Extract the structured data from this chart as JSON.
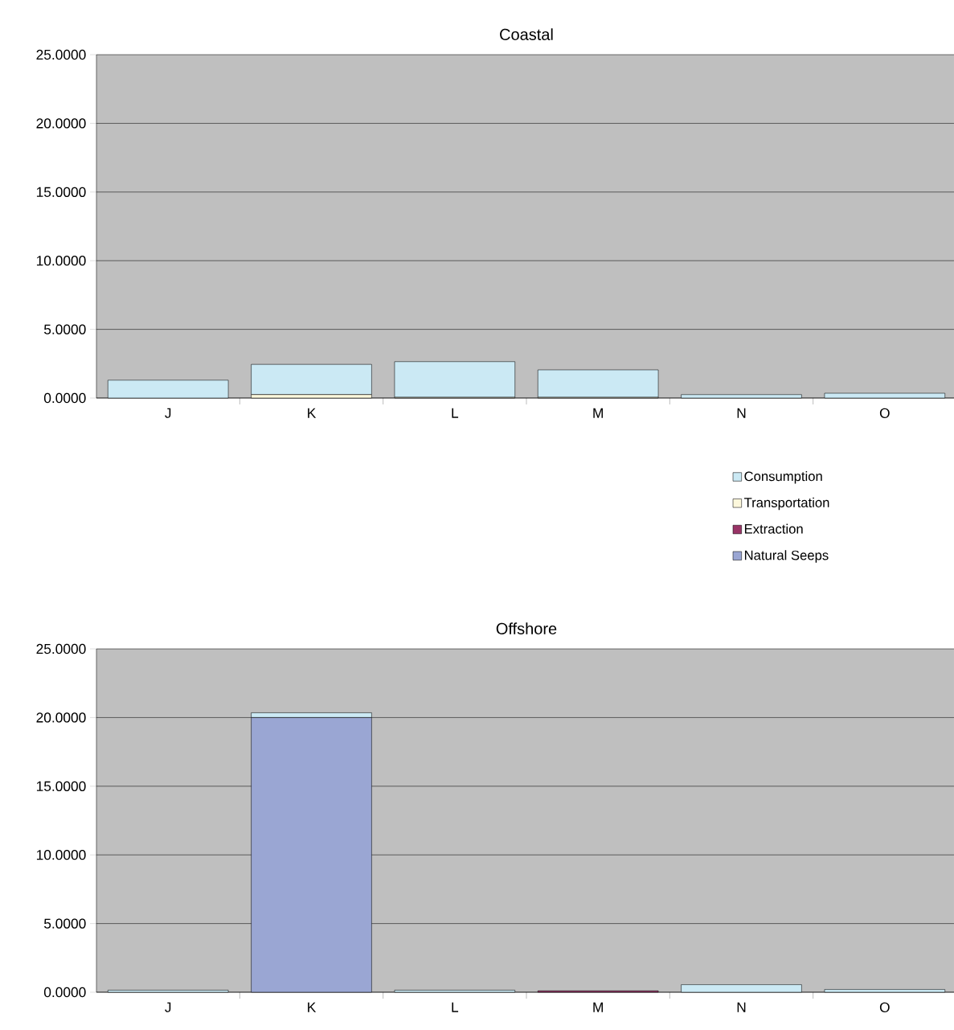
{
  "chart_data": [
    {
      "type": "bar",
      "title": "Coastal",
      "stacked": true,
      "grid": "y",
      "legend": "bottom right",
      "categories": [
        "J",
        "K",
        "L",
        "M",
        "N",
        "O"
      ],
      "series": [
        {
          "name": "Natural Seeps",
          "color": "#9aa6d3",
          "values": [
            0,
            0,
            0,
            0,
            0,
            0
          ]
        },
        {
          "name": "Extraction",
          "color": "#993366",
          "values": [
            0,
            0,
            0,
            0,
            0,
            0
          ]
        },
        {
          "name": "Transportation",
          "color": "#fdf8dc",
          "values": [
            0,
            0.25,
            0.05,
            0.05,
            0,
            0
          ]
        },
        {
          "name": "Consumption",
          "color": "#cbe9f4",
          "values": [
            1.3,
            2.2,
            2.6,
            2.0,
            0.25,
            0.35
          ]
        }
      ],
      "ylim": [
        0,
        25
      ],
      "yticks": [
        {
          "value": 0,
          "label": "0.0000"
        },
        {
          "value": 5,
          "label": "5.0000"
        },
        {
          "value": 10,
          "label": "10.0000"
        },
        {
          "value": 15,
          "label": "15.0000"
        },
        {
          "value": 20,
          "label": "20.0000"
        },
        {
          "value": 25,
          "label": "25.0000"
        }
      ]
    },
    {
      "type": "bar",
      "title": "Offshore",
      "stacked": true,
      "grid": "y",
      "categories": [
        "J",
        "K",
        "L",
        "M",
        "N",
        "O"
      ],
      "series": [
        {
          "color": "#9aa6d3",
          "values": [
            0,
            20.0,
            0,
            0,
            0,
            0
          ]
        },
        {
          "color": "#993366",
          "values": [
            0,
            0,
            0,
            0.1,
            0,
            0
          ]
        },
        {
          "color": "#fdf8dc",
          "values": [
            0,
            0,
            0,
            0,
            0,
            0
          ]
        },
        {
          "color": "#cbe9f4",
          "values": [
            0.15,
            0.35,
            0.15,
            0,
            0.55,
            0.2
          ]
        }
      ],
      "ylim": [
        0,
        25
      ],
      "yticks": [
        {
          "value": 0,
          "label": "0.0000"
        },
        {
          "value": 5,
          "label": "5.0000"
        },
        {
          "value": 10,
          "label": "10.0000"
        },
        {
          "value": 15,
          "label": "15.0000"
        },
        {
          "value": 20,
          "label": "20.0000"
        },
        {
          "value": 25,
          "label": "25.0000"
        }
      ]
    }
  ]
}
